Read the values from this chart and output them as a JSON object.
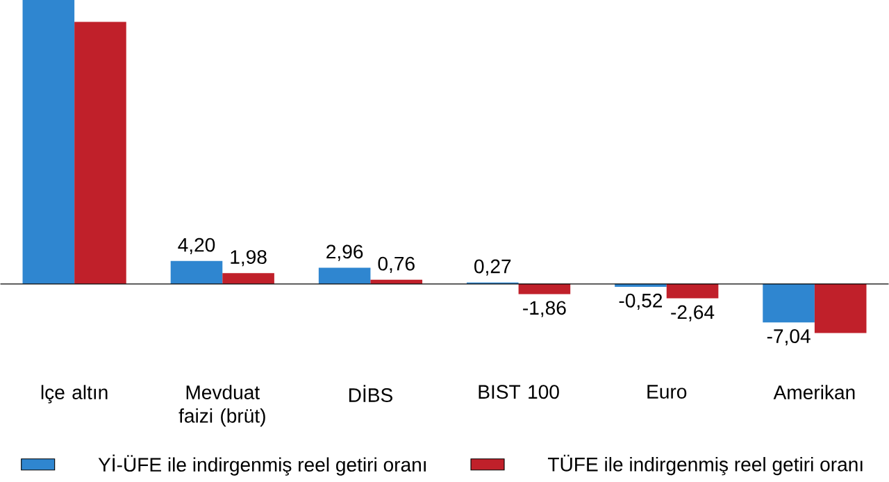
{
  "chart_data": {
    "type": "bar",
    "categories": [
      "lçe altın",
      "Mevduat faizi (brüt)",
      "DİBS",
      "BIST 100",
      "Euro",
      "Amerikan"
    ],
    "series": [
      {
        "name": "Yİ-ÜFE ile indirgenmiş reel getiri oranı",
        "color": "#2f86d0",
        "values": [
          52,
          4.2,
          2.96,
          0.27,
          -0.52,
          -7.04
        ],
        "value_labels": [
          null,
          "4,20",
          "2,96",
          "0,27",
          "-0,52",
          "-7,04"
        ]
      },
      {
        "name": "TÜFE ile indirgenmiş reel getiri oranı",
        "color": "#c0202a",
        "values": [
          48,
          1.98,
          0.76,
          -1.86,
          -2.64,
          -9
        ],
        "value_labels": [
          null,
          "1,98",
          "0,76",
          "-1,86",
          "-2,64",
          null
        ]
      }
    ],
    "tick_labels": "x",
    "legend": "bottom",
    "grid": false
  }
}
